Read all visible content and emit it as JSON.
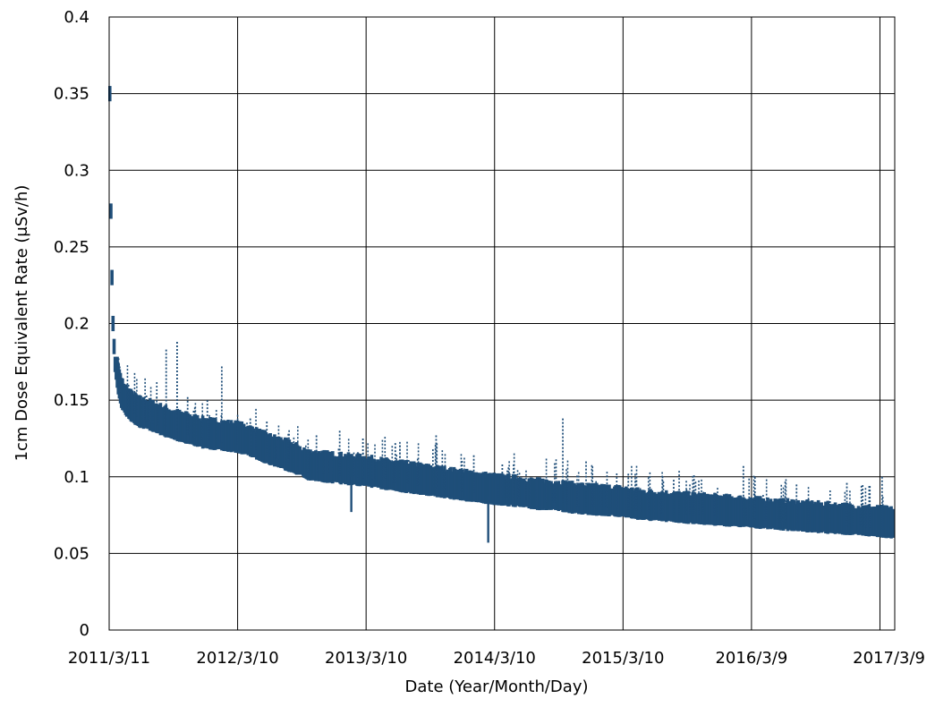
{
  "chart_data": {
    "type": "scatter",
    "title": "",
    "xlabel": "Date (Year/Month/Day)",
    "ylabel": "1cm Dose Equivalent Rate (μSv/h)",
    "ylim": [
      0,
      0.4
    ],
    "yticks": [
      {
        "value": 0,
        "label": "0"
      },
      {
        "value": 0.05,
        "label": "0.05"
      },
      {
        "value": 0.1,
        "label": "0.1"
      },
      {
        "value": 0.15,
        "label": "0.15"
      },
      {
        "value": 0.2,
        "label": "0.2"
      },
      {
        "value": 0.25,
        "label": "0.25"
      },
      {
        "value": 0.3,
        "label": "0.3"
      },
      {
        "value": 0.35,
        "label": "0.35"
      },
      {
        "value": 0.4,
        "label": "0.4"
      }
    ],
    "xlim": [
      "2011-03-11",
      "2017-04-20"
    ],
    "xticks": [
      {
        "value": "2011-03-11",
        "label": "2011/3/11"
      },
      {
        "value": "2012-03-10",
        "label": "2012/3/10"
      },
      {
        "value": "2013-03-10",
        "label": "2013/3/10"
      },
      {
        "value": "2014-03-10",
        "label": "2014/3/10"
      },
      {
        "value": "2015-03-10",
        "label": "2015/3/10"
      },
      {
        "value": "2016-03-09",
        "label": "2016/3/9"
      },
      {
        "value": "2017-03-09",
        "label": "2017/3/9"
      }
    ],
    "grid": true,
    "color": "#1f4e79",
    "series": [
      {
        "x": [
          "2011-03-13",
          "2011-03-15",
          "2011-03-18",
          "2011-03-22",
          "2011-03-27",
          "2011-04-05",
          "2011-04-15",
          "2011-05-01",
          "2011-05-20",
          "2011-06-10",
          "2011-07-01",
          "2011-07-20",
          "2011-08-10",
          "2011-09-01",
          "2011-10-01",
          "2011-11-01",
          "2011-12-01",
          "2012-01-01",
          "2012-02-01",
          "2012-03-10",
          "2012-04-10",
          "2012-05-10",
          "2012-06-10",
          "2012-07-10",
          "2012-08-10",
          "2012-09-05",
          "2012-09-25",
          "2012-11-01",
          "2012-12-10",
          "2013-01-20",
          "2013-03-10",
          "2013-05-01",
          "2013-07-01",
          "2013-09-01",
          "2013-11-01",
          "2014-01-01",
          "2014-03-10",
          "2014-05-01",
          "2014-07-01",
          "2014-09-01",
          "2014-11-01",
          "2015-01-01",
          "2015-03-10",
          "2015-05-01",
          "2015-07-01",
          "2015-09-01",
          "2015-11-01",
          "2016-01-01",
          "2016-03-09",
          "2016-05-01",
          "2016-07-01",
          "2016-09-01",
          "2016-11-01",
          "2017-01-01",
          "2017-03-09",
          "2017-04-18"
        ],
        "y": [
          0.35,
          0.29,
          0.24,
          0.2,
          0.175,
          0.16,
          0.15,
          0.144,
          0.14,
          0.137,
          0.136,
          0.134,
          0.132,
          0.13,
          0.128,
          0.126,
          0.124,
          0.123,
          0.122,
          0.121,
          0.119,
          0.116,
          0.113,
          0.111,
          0.108,
          0.106,
          0.103,
          0.102,
          0.101,
          0.1,
          0.099,
          0.097,
          0.095,
          0.093,
          0.091,
          0.089,
          0.087,
          0.086,
          0.084,
          0.083,
          0.081,
          0.08,
          0.079,
          0.077,
          0.076,
          0.075,
          0.074,
          0.073,
          0.072,
          0.071,
          0.07,
          0.069,
          0.068,
          0.067,
          0.066,
          0.065
        ]
      }
    ],
    "spikes": [
      {
        "x": "2011-04-10",
        "y": 0.172
      },
      {
        "x": "2011-05-05",
        "y": 0.16
      },
      {
        "x": "2011-06-25",
        "y": 0.153
      },
      {
        "x": "2011-08-20",
        "y": 0.183
      },
      {
        "x": "2011-09-20",
        "y": 0.188
      },
      {
        "x": "2011-10-20",
        "y": 0.152
      },
      {
        "x": "2011-12-15",
        "y": 0.15
      },
      {
        "x": "2012-01-25",
        "y": 0.172
      },
      {
        "x": "2012-04-15",
        "y": 0.138
      },
      {
        "x": "2012-06-01",
        "y": 0.136
      },
      {
        "x": "2012-08-01",
        "y": 0.128
      },
      {
        "x": "2012-10-20",
        "y": 0.127
      },
      {
        "x": "2012-12-25",
        "y": 0.13
      },
      {
        "x": "2013-03-01",
        "y": 0.125
      },
      {
        "x": "2013-06-01",
        "y": 0.122
      },
      {
        "x": "2013-09-25",
        "y": 0.127
      },
      {
        "x": "2014-01-10",
        "y": 0.114
      },
      {
        "x": "2014-04-01",
        "y": 0.108
      },
      {
        "x": "2014-09-20",
        "y": 0.138
      },
      {
        "x": "2014-11-25",
        "y": 0.11
      },
      {
        "x": "2015-03-25",
        "y": 0.102
      },
      {
        "x": "2015-08-01",
        "y": 0.098
      },
      {
        "x": "2016-02-15",
        "y": 0.107
      },
      {
        "x": "2016-07-15",
        "y": 0.095
      },
      {
        "x": "2016-12-05",
        "y": 0.096
      },
      {
        "x": "2017-03-15",
        "y": 0.1
      }
    ],
    "dips": [
      {
        "x": "2013-01-27",
        "y": 0.077
      },
      {
        "x": "2014-02-20",
        "y": 0.057
      }
    ]
  }
}
